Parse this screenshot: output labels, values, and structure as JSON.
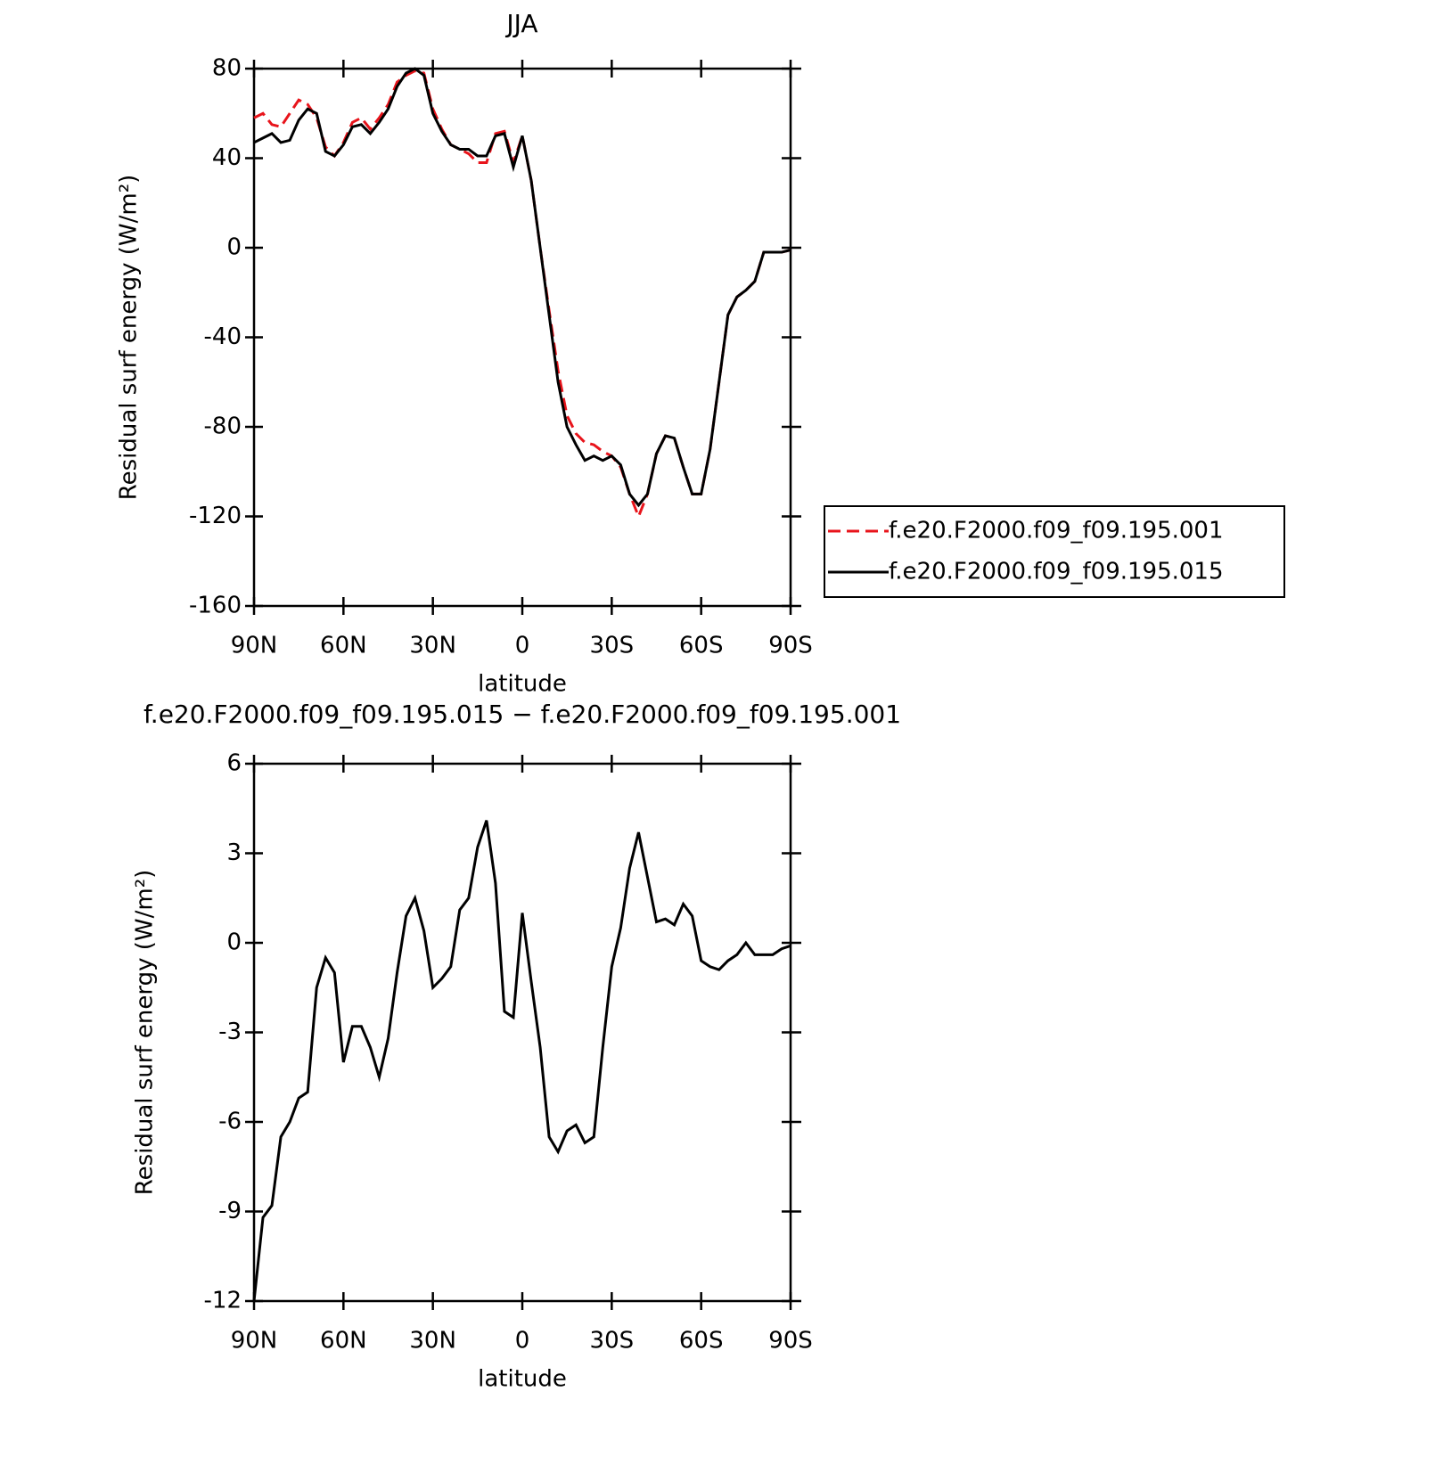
{
  "chart_data": [
    {
      "type": "line",
      "title": "JJA",
      "xlabel": "latitude",
      "ylabel": "Residual surf energy (W/m²)",
      "x": [
        90,
        87,
        84,
        81,
        78,
        75,
        72,
        69,
        66,
        63,
        60,
        57,
        54,
        51,
        48,
        45,
        42,
        39,
        36,
        33,
        30,
        27,
        24,
        21,
        18,
        15,
        12,
        9,
        6,
        3,
        0,
        -3,
        -6,
        -9,
        -12,
        -15,
        -18,
        -21,
        -24,
        -27,
        -30,
        -33,
        -36,
        -39,
        -42,
        -45,
        -48,
        -51,
        -54,
        -57,
        -60,
        -63,
        -66,
        -69,
        -72,
        -75,
        -78,
        -81,
        -84,
        -87,
        -90
      ],
      "series": [
        {
          "name": "f.e20.F2000.f09_f09.195.001",
          "color": "#e8141b",
          "dash": true,
          "values": [
            58,
            60,
            55,
            54,
            60,
            66,
            64,
            58,
            45,
            41,
            47,
            56,
            58,
            53,
            58,
            64,
            74,
            77,
            79,
            78,
            62,
            53,
            46,
            44,
            42,
            38,
            38,
            51,
            52,
            38,
            50,
            30,
            0,
            -28,
            -55,
            -75,
            -83,
            -87,
            -88,
            -91,
            -93,
            -98,
            -110,
            -120,
            -110,
            -92,
            -84,
            -85,
            -98,
            -110,
            -110,
            -90,
            -60,
            -30,
            -22,
            -19,
            -15,
            -2,
            -2,
            -2,
            -1
          ]
        },
        {
          "name": "f.e20.F2000.f09_f09.195.015",
          "color": "#000000",
          "dash": false,
          "values": [
            47,
            49,
            51,
            47,
            48,
            57,
            62,
            60,
            43,
            41,
            46,
            54,
            55,
            51,
            56,
            62,
            72,
            78,
            80,
            77,
            60,
            52,
            46,
            44,
            44,
            41,
            41,
            50,
            51,
            36,
            50,
            30,
            0,
            -30,
            -60,
            -80,
            -88,
            -95,
            -93,
            -95,
            -93,
            -97,
            -110,
            -115,
            -110,
            -92,
            -84,
            -85,
            -98,
            -110,
            -110,
            -90,
            -60,
            -30,
            -22,
            -19,
            -15,
            -2,
            -2,
            -2,
            -1
          ]
        }
      ],
      "xlim": [
        90,
        -90
      ],
      "xticks": [
        {
          "value": 90,
          "label": "90N"
        },
        {
          "value": 60,
          "label": "60N"
        },
        {
          "value": 30,
          "label": "30N"
        },
        0,
        {
          "value": -30,
          "label": "30S"
        },
        {
          "value": -60,
          "label": "60S"
        },
        {
          "value": -90,
          "label": "90S"
        }
      ],
      "ylim": [
        -160,
        80
      ],
      "yticks": [
        -160,
        -120,
        -80,
        -40,
        0,
        40,
        80
      ],
      "legend": "right"
    },
    {
      "type": "line",
      "title": "f.e20.F2000.f09_f09.195.015 − f.e20.F2000.f09_f09.195.001",
      "xlabel": "latitude",
      "ylabel": "Residual surf energy (W/m²)",
      "x": [
        90,
        87,
        84,
        81,
        78,
        75,
        72,
        69,
        66,
        63,
        60,
        57,
        54,
        51,
        48,
        45,
        42,
        39,
        36,
        33,
        30,
        27,
        24,
        21,
        18,
        15,
        12,
        9,
        6,
        3,
        0,
        -3,
        -6,
        -9,
        -12,
        -15,
        -18,
        -21,
        -24,
        -27,
        -30,
        -33,
        -36,
        -39,
        -42,
        -45,
        -48,
        -51,
        -54,
        -57,
        -60,
        -63,
        -66,
        -69,
        -72,
        -75,
        -78,
        -81,
        -84,
        -87,
        -90
      ],
      "series": [
        {
          "color": "#000000",
          "dash": false,
          "values": [
            -12,
            -9.2,
            -8.8,
            -6.5,
            -6,
            -5.2,
            -5,
            -1.5,
            -0.5,
            -1,
            -4,
            -2.8,
            -2.8,
            -3.5,
            -4.5,
            -3.2,
            -1,
            0.9,
            1.5,
            0.4,
            -1.5,
            -1.2,
            -0.8,
            1.1,
            1.5,
            3.2,
            4.1,
            2,
            -2.3,
            -2.5,
            1,
            -1.3,
            -3.5,
            -6.5,
            -7,
            -6.3,
            -6.1,
            -6.7,
            -6.5,
            -3.5,
            -0.8,
            0.5,
            2.5,
            3.7,
            2.2,
            0.7,
            0.8,
            0.6,
            1.3,
            0.9,
            -0.6,
            -0.8,
            -0.9,
            -0.6,
            -0.4,
            0,
            -0.4,
            -0.4,
            -0.4,
            -0.2,
            -0.1
          ]
        }
      ],
      "xlim": [
        90,
        -90
      ],
      "xticks": [
        {
          "value": 90,
          "label": "90N"
        },
        {
          "value": 60,
          "label": "60N"
        },
        {
          "value": 30,
          "label": "30N"
        },
        0,
        {
          "value": -30,
          "label": "30S"
        },
        {
          "value": -60,
          "label": "60S"
        },
        {
          "value": -90,
          "label": "90S"
        }
      ],
      "ylim": [
        -12,
        6
      ],
      "yticks": [
        -12,
        -9,
        -6,
        -3,
        0,
        3,
        6
      ]
    }
  ]
}
